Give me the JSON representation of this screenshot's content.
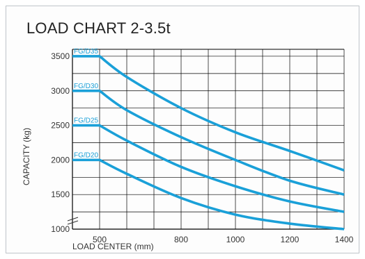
{
  "chart_data": {
    "type": "line",
    "title": "LOAD CHART 2-3.5t",
    "xlabel": "LOAD CENTER (mm)",
    "ylabel": "CAPACITY (kg)",
    "x_tick_labels": [
      "500",
      "800",
      "1000",
      "1200",
      "1400"
    ],
    "y_tick_labels": [
      "1000",
      "1500",
      "2000",
      "2500",
      "3000",
      "3500"
    ],
    "xlim": [
      400,
      1400
    ],
    "ylim": [
      1000,
      3600
    ],
    "grid": true,
    "colors": {
      "series": "#1aa0d8",
      "grid": "#000000"
    },
    "series": [
      {
        "name": "FG/D35",
        "x": [
          400,
          500,
          600,
          800,
          1000,
          1200,
          1400
        ],
        "y": [
          3500,
          3500,
          3200,
          2750,
          2400,
          2130,
          1850
        ]
      },
      {
        "name": "FG/D30",
        "x": [
          400,
          500,
          600,
          800,
          1000,
          1200,
          1400
        ],
        "y": [
          3000,
          3000,
          2720,
          2330,
          2000,
          1700,
          1500
        ]
      },
      {
        "name": "FG/D25",
        "x": [
          400,
          500,
          600,
          800,
          1000,
          1200,
          1400
        ],
        "y": [
          2500,
          2500,
          2280,
          1900,
          1620,
          1400,
          1250
        ]
      },
      {
        "name": "FG/D20",
        "x": [
          400,
          500,
          600,
          800,
          1000,
          1200,
          1400
        ],
        "y": [
          2000,
          2000,
          1800,
          1450,
          1210,
          1080,
          1000
        ]
      }
    ]
  }
}
